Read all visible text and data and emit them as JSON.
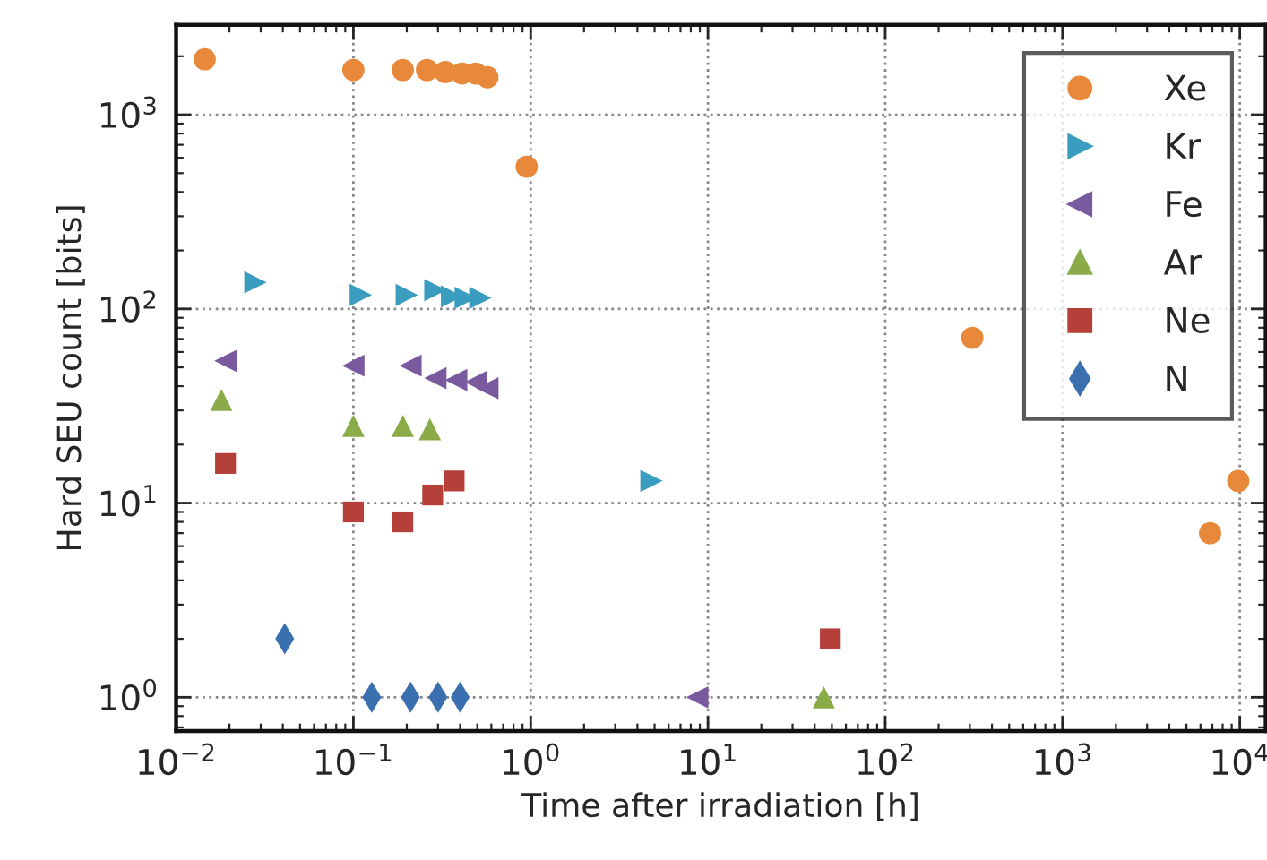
{
  "chart_data": {
    "type": "scatter",
    "xlabel": "Time after irradiation [h]",
    "ylabel": "Hard SEU count [bits]",
    "log": "xy",
    "xlim": [
      0.01,
      14000
    ],
    "ylim": [
      0.67,
      2900
    ],
    "xticks": [
      {
        "value": 0.01,
        "label": "10$^{−2}$"
      },
      {
        "value": 0.1,
        "label": "10$^{−1}$"
      },
      {
        "value": 1,
        "label": "10$^{0}$"
      },
      {
        "value": 10,
        "label": "10$^{1}$"
      },
      {
        "value": 100,
        "label": "10$^{2}$"
      },
      {
        "value": 1000,
        "label": "10$^{3}$"
      },
      {
        "value": 10000,
        "label": "10$^{4}$"
      }
    ],
    "yticks": [
      {
        "value": 1,
        "label": "10$^{0}$"
      },
      {
        "value": 10,
        "label": "10$^{1}$"
      },
      {
        "value": 100,
        "label": "10$^{2}$"
      },
      {
        "value": 1000,
        "label": "10$^{3}$"
      }
    ],
    "grid": true,
    "legend": "top right",
    "series": [
      {
        "name": "Xe",
        "color": "#e8883a",
        "marker": "circle",
        "x": [
          0.0145,
          0.1,
          0.19,
          0.26,
          0.33,
          0.41,
          0.49,
          0.57,
          0.95,
          310,
          6800,
          9800
        ],
        "values": [
          1930,
          1700,
          1700,
          1700,
          1660,
          1630,
          1630,
          1560,
          540,
          71,
          7,
          13
        ]
      },
      {
        "name": "Kr",
        "color": "#3a9cbf",
        "marker": "triangle-right",
        "x": [
          0.028,
          0.11,
          0.2,
          0.29,
          0.36,
          0.43,
          0.52,
          4.8
        ],
        "values": [
          137,
          118,
          118,
          125,
          116,
          114,
          114,
          13
        ]
      },
      {
        "name": "Fe",
        "color": "#7a5a9e",
        "marker": "triangle-left",
        "x": [
          0.019,
          0.1,
          0.21,
          0.29,
          0.38,
          0.49,
          0.57,
          8.7
        ],
        "values": [
          54,
          51,
          51,
          44,
          43,
          42,
          39,
          1
        ]
      },
      {
        "name": "Ar",
        "color": "#8aab48",
        "marker": "triangle",
        "x": [
          0.018,
          0.1,
          0.19,
          0.27,
          45
        ],
        "values": [
          34,
          25,
          25,
          24,
          1
        ]
      },
      {
        "name": "Ne",
        "color": "#b5403a",
        "marker": "square",
        "x": [
          0.019,
          0.1,
          0.19,
          0.28,
          0.37,
          49
        ],
        "values": [
          16,
          9,
          8,
          11,
          13,
          2
        ]
      },
      {
        "name": "N",
        "color": "#3a6fb0",
        "marker": "diamond",
        "x": [
          0.041,
          0.127,
          0.21,
          0.3,
          0.4
        ],
        "values": [
          2,
          1,
          1,
          1,
          1
        ]
      }
    ]
  }
}
